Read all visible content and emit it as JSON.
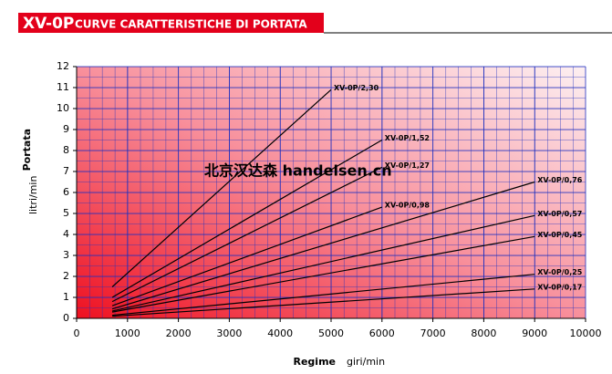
{
  "chart_data": {
    "type": "line",
    "title": "XV-0P",
    "subtitle": "CURVE CARATTERISTICHE DI PORTATA",
    "x_label": "Regime",
    "x_unit": "giri/min",
    "y_label": "Portata",
    "y_unit": "litri/min",
    "watermark": "北京汉达森 handelsen.cn",
    "xlim": [
      0,
      10000
    ],
    "ylim": [
      0,
      12
    ],
    "xticks": [
      0,
      1000,
      2000,
      3000,
      4000,
      5000,
      6000,
      7000,
      8000,
      9000,
      10000
    ],
    "yticks": [
      0,
      1,
      2,
      3,
      4,
      5,
      6,
      7,
      8,
      9,
      10,
      11,
      12
    ],
    "grid": true,
    "grid_color": "#1f2fbf",
    "series": [
      {
        "name": "XV-0P/2,30",
        "color": "#000000",
        "x": [
          700,
          5000
        ],
        "values": [
          1.5,
          10.9
        ]
      },
      {
        "name": "XV-0P/1,52",
        "color": "#000000",
        "x": [
          700,
          6000
        ],
        "values": [
          1.0,
          8.5
        ]
      },
      {
        "name": "XV-0P/1,27",
        "color": "#000000",
        "x": [
          700,
          6000
        ],
        "values": [
          0.8,
          7.2
        ]
      },
      {
        "name": "XV-0P/0,98",
        "color": "#000000",
        "x": [
          700,
          6000
        ],
        "values": [
          0.6,
          5.3
        ]
      },
      {
        "name": "XV-0P/0,76",
        "color": "#000000",
        "x": [
          700,
          9000
        ],
        "values": [
          0.45,
          6.5
        ]
      },
      {
        "name": "XV-0P/0,57",
        "color": "#000000",
        "x": [
          700,
          9000
        ],
        "values": [
          0.35,
          4.9
        ]
      },
      {
        "name": "XV-0P/0,45",
        "color": "#000000",
        "x": [
          700,
          9000
        ],
        "values": [
          0.3,
          3.9
        ]
      },
      {
        "name": "XV-0P/0,25",
        "color": "#000000",
        "x": [
          700,
          9000
        ],
        "values": [
          0.15,
          2.1
        ]
      },
      {
        "name": "XV-0P/0,17",
        "color": "#000000",
        "x": [
          700,
          9000
        ],
        "values": [
          0.1,
          1.4
        ]
      }
    ]
  }
}
